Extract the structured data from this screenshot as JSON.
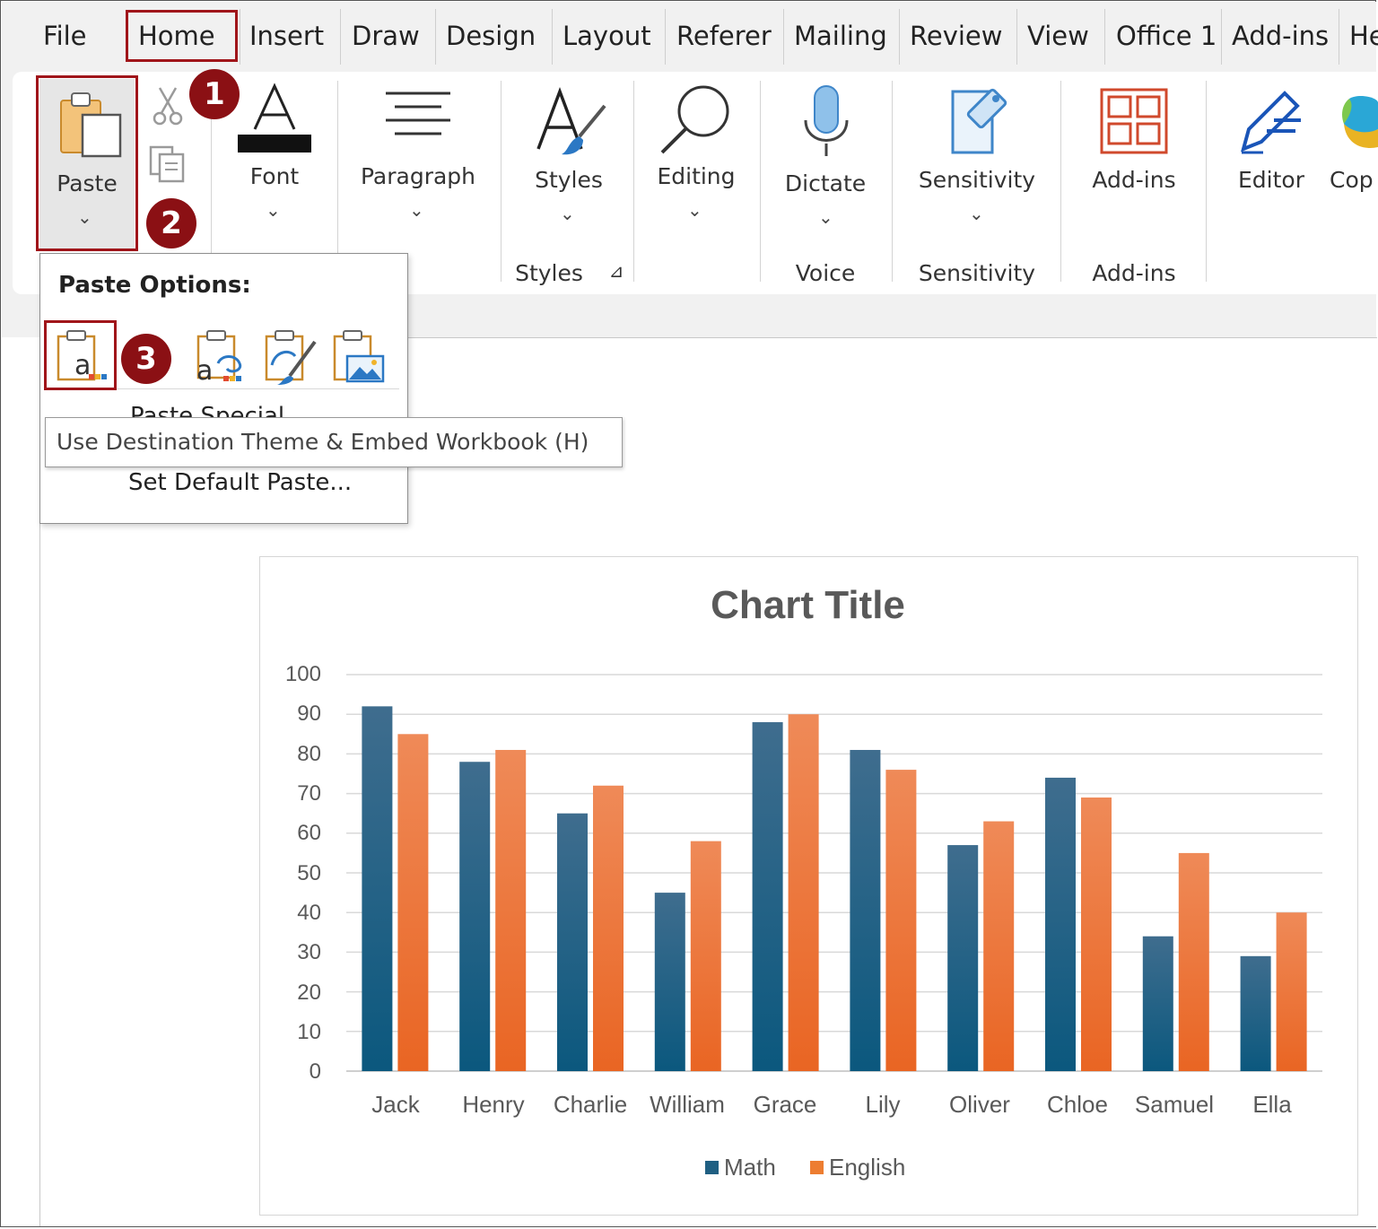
{
  "tabs": [
    "File",
    "Home",
    "Insert",
    "Draw",
    "Design",
    "Layout",
    "Referer",
    "Mailing",
    "Review",
    "View",
    "Office 1",
    "Add-ins",
    "He"
  ],
  "active_tab": "Home",
  "ribbon": {
    "paste_label": "Paste",
    "font_label": "Font",
    "paragraph_label": "Paragraph",
    "styles_label": "Styles",
    "editing_label": "Editing",
    "dictate_label": "Dictate",
    "sensitivity_label": "Sensitivity",
    "addins_label": "Add-ins",
    "editor_label": "Editor",
    "copilot_label": "Cop",
    "groups": {
      "styles": "Styles",
      "voice": "Voice",
      "sensitivity": "Sensitivity",
      "addins": "Add-ins"
    },
    "chevron": "⌄",
    "dialog_launcher": "⊿"
  },
  "steps": [
    "1",
    "2",
    "3"
  ],
  "paste_menu": {
    "title": "Paste Options:",
    "options": [
      "Use Destination Theme & Embed Workbook (H)",
      "Keep Source Formatting & Embed Workbook",
      "Use Destination Theme & Link Data",
      "Picture"
    ],
    "partial_item": "Paste Special...",
    "set_default": "Set Default Paste...",
    "tooltip": "Use Destination Theme & Embed Workbook (H)"
  },
  "colors": {
    "highlight": "#a0151a",
    "badge": "#8b1014",
    "math": "#1f5f82",
    "english": "#ed7d31"
  },
  "chart_data": {
    "type": "bar",
    "title": "Chart Title",
    "categories": [
      "Jack",
      "Henry",
      "Charlie",
      "William",
      "Grace",
      "Lily",
      "Oliver",
      "Chloe",
      "Samuel",
      "Ella"
    ],
    "series": [
      {
        "name": "Math",
        "values": [
          92,
          78,
          65,
          45,
          88,
          81,
          57,
          74,
          34,
          29
        ]
      },
      {
        "name": "English",
        "values": [
          85,
          81,
          72,
          58,
          90,
          76,
          63,
          69,
          55,
          40
        ]
      }
    ],
    "yticks": [
      "100",
      "90",
      "80",
      "70",
      "60",
      "50",
      "40",
      "30",
      "20",
      "10",
      "0"
    ],
    "ylim": [
      0,
      100
    ],
    "grid": true,
    "legend_position": "bottom"
  }
}
